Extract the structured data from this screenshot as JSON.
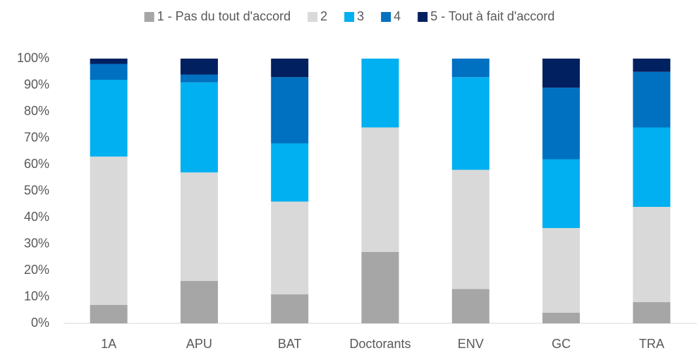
{
  "chart_data": {
    "type": "stacked_bar",
    "categories": [
      "1A",
      "APU",
      "BAT",
      "Doctorants",
      "ENV",
      "GC",
      "TRA"
    ],
    "series": [
      {
        "name": "1 - Pas du tout d'accord",
        "color": "#a6a6a6",
        "values": [
          7,
          16,
          11,
          27,
          13,
          4,
          8
        ]
      },
      {
        "name": "2",
        "color": "#d9d9d9",
        "values": [
          56,
          41,
          35,
          47,
          45,
          32,
          36
        ]
      },
      {
        "name": "3",
        "color": "#00b0f0",
        "values": [
          29,
          34,
          22,
          26,
          35,
          26,
          30
        ]
      },
      {
        "name": "4",
        "color": "#0070c0",
        "values": [
          6,
          3,
          25,
          0,
          7,
          27,
          21
        ]
      },
      {
        "name": "5 - Tout à fait d'accord",
        "color": "#002060",
        "values": [
          2,
          6,
          7,
          0,
          0,
          11,
          5
        ]
      }
    ],
    "ylim": [
      0,
      100
    ],
    "yticks": [
      {
        "value": 0,
        "label": "0%"
      },
      {
        "value": 10,
        "label": "10%"
      },
      {
        "value": 20,
        "label": "20%"
      },
      {
        "value": 30,
        "label": "30%"
      },
      {
        "value": 40,
        "label": "40%"
      },
      {
        "value": 50,
        "label": "50%"
      },
      {
        "value": 60,
        "label": "60%"
      },
      {
        "value": 70,
        "label": "70%"
      },
      {
        "value": 80,
        "label": "80%"
      },
      {
        "value": 90,
        "label": "90%"
      },
      {
        "value": 100,
        "label": "100%"
      }
    ],
    "legend": "top"
  }
}
